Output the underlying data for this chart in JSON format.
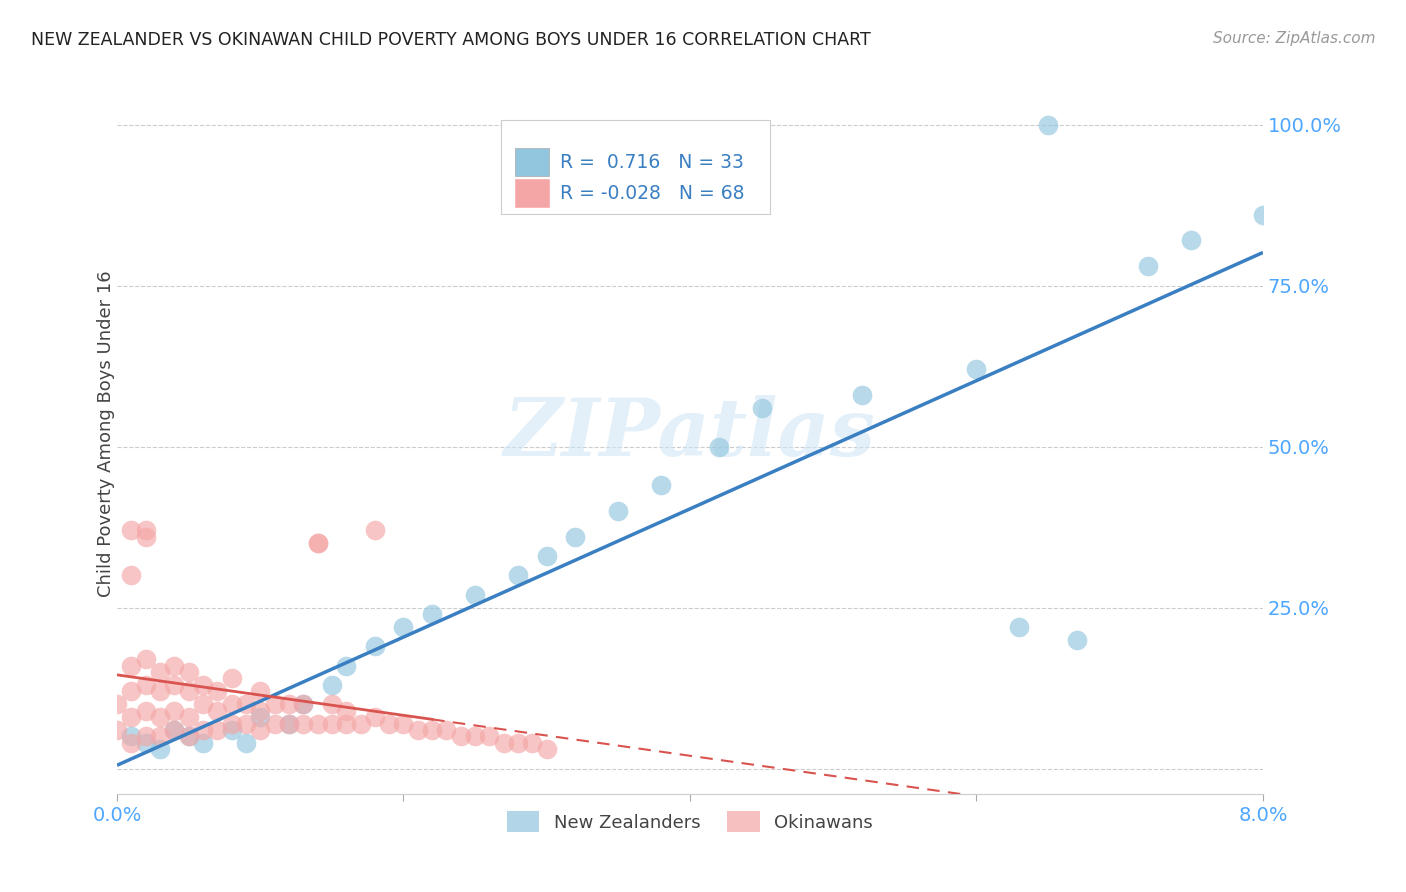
{
  "title": "NEW ZEALANDER VS OKINAWAN CHILD POVERTY AMONG BOYS UNDER 16 CORRELATION CHART",
  "source": "Source: ZipAtlas.com",
  "ylabel": "Child Poverty Among Boys Under 16",
  "xlim": [
    0.0,
    0.08
  ],
  "ylim": [
    -0.04,
    1.08
  ],
  "blue_R": 0.716,
  "blue_N": 33,
  "pink_R": -0.028,
  "pink_N": 68,
  "blue_color": "#92c5de",
  "pink_color": "#f4a6a6",
  "blue_line_color": "#3a7fc1",
  "pink_line_color": "#d9534f",
  "watermark": "ZIPatlas",
  "legend_labels": [
    "New Zealanders",
    "Okinawans"
  ],
  "blue_x": [
    0.001,
    0.002,
    0.003,
    0.004,
    0.005,
    0.006,
    0.008,
    0.009,
    0.01,
    0.011,
    0.012,
    0.014,
    0.016,
    0.018,
    0.02,
    0.022,
    0.025,
    0.028,
    0.03,
    0.032,
    0.034,
    0.037,
    0.04,
    0.043,
    0.05,
    0.055,
    0.06,
    0.062,
    0.066,
    0.07,
    0.074,
    0.078,
    0.083
  ],
  "blue_y": [
    0.04,
    0.03,
    0.05,
    0.02,
    0.04,
    0.06,
    0.05,
    0.03,
    0.07,
    0.08,
    0.06,
    0.12,
    0.15,
    0.17,
    0.2,
    0.22,
    0.26,
    0.3,
    0.32,
    0.35,
    0.4,
    0.43,
    0.46,
    0.5,
    0.55,
    0.58,
    0.62,
    0.22,
    0.2,
    0.18,
    0.8,
    0.85,
    0.88
  ],
  "pink_x": [
    0.0,
    0.0,
    0.001,
    0.001,
    0.001,
    0.001,
    0.001,
    0.002,
    0.002,
    0.002,
    0.002,
    0.002,
    0.003,
    0.003,
    0.003,
    0.003,
    0.004,
    0.004,
    0.004,
    0.004,
    0.005,
    0.005,
    0.005,
    0.005,
    0.006,
    0.006,
    0.006,
    0.007,
    0.007,
    0.007,
    0.008,
    0.008,
    0.008,
    0.009,
    0.009,
    0.01,
    0.01,
    0.01,
    0.011,
    0.011,
    0.012,
    0.012,
    0.013,
    0.013,
    0.014,
    0.014,
    0.015,
    0.015,
    0.016,
    0.016,
    0.017,
    0.017,
    0.018,
    0.018,
    0.019,
    0.019,
    0.02,
    0.02,
    0.021,
    0.022,
    0.022,
    0.023,
    0.024,
    0.025,
    0.026,
    0.027,
    0.028,
    0.029
  ],
  "pink_y": [
    0.04,
    0.08,
    0.03,
    0.06,
    0.09,
    0.12,
    0.3,
    0.05,
    0.08,
    0.11,
    0.14,
    0.35,
    0.04,
    0.07,
    0.1,
    0.13,
    0.06,
    0.09,
    0.12,
    0.15,
    0.05,
    0.08,
    0.11,
    0.14,
    0.07,
    0.1,
    0.13,
    0.06,
    0.09,
    0.12,
    0.08,
    0.11,
    0.14,
    0.07,
    0.1,
    0.06,
    0.09,
    0.12,
    0.08,
    0.11,
    0.07,
    0.1,
    0.08,
    0.11,
    0.07,
    0.09,
    0.08,
    0.11,
    0.07,
    0.09,
    0.08,
    0.06,
    0.07,
    0.09,
    0.06,
    0.08,
    0.07,
    0.05,
    0.06,
    0.07,
    0.05,
    0.06,
    0.05,
    0.04,
    0.05,
    0.04,
    0.03,
    0.03
  ]
}
